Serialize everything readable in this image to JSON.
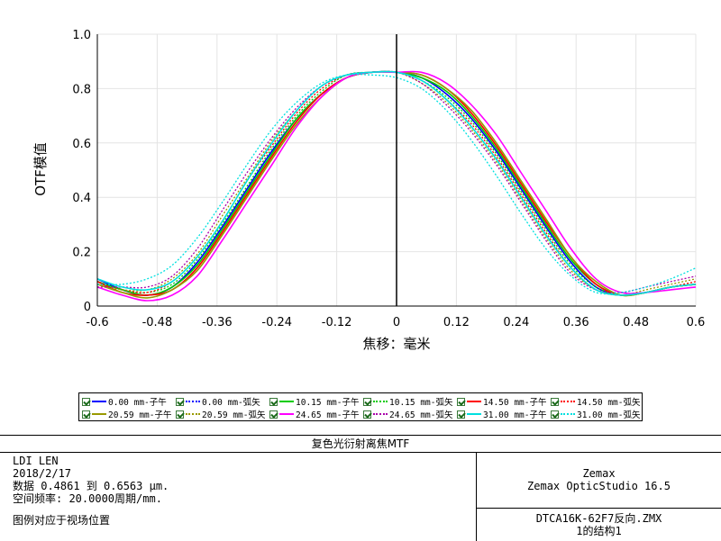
{
  "chart_data": {
    "type": "line",
    "title": "复色光衍射离焦MTF",
    "xlabel": "焦移：毫米",
    "ylabel": "OTF模值",
    "xlim": [
      -0.6,
      0.6
    ],
    "ylim": [
      0,
      1.0
    ],
    "x_ticks": [
      "-0.6",
      "-0.48",
      "-0.36",
      "-0.24",
      "-0.12",
      "0",
      "0.12",
      "0.24",
      "0.36",
      "0.48",
      "0.6"
    ],
    "y_ticks": [
      "0",
      "0.2",
      "0.4",
      "0.6",
      "0.8",
      "1.0"
    ],
    "grid": true,
    "x": [
      -0.6,
      -0.55,
      -0.5,
      -0.45,
      -0.4,
      -0.35,
      -0.3,
      -0.25,
      -0.2,
      -0.15,
      -0.1,
      -0.05,
      0,
      0.05,
      0.1,
      0.15,
      0.2,
      0.25,
      0.3,
      0.35,
      0.4,
      0.45,
      0.5,
      0.55,
      0.6
    ],
    "series": [
      {
        "name": "0.00 mm-子午",
        "color": "#0000ff",
        "dash": false,
        "values": [
          0.1,
          0.06,
          0.04,
          0.07,
          0.16,
          0.29,
          0.43,
          0.57,
          0.69,
          0.78,
          0.84,
          0.86,
          0.86,
          0.84,
          0.78,
          0.69,
          0.57,
          0.43,
          0.29,
          0.16,
          0.07,
          0.04,
          0.05,
          0.07,
          0.08
        ]
      },
      {
        "name": "0.00 mm-弧矢",
        "color": "#0000ff",
        "dash": true,
        "values": [
          0.1,
          0.06,
          0.04,
          0.07,
          0.16,
          0.29,
          0.43,
          0.57,
          0.69,
          0.78,
          0.84,
          0.86,
          0.86,
          0.84,
          0.78,
          0.69,
          0.57,
          0.43,
          0.29,
          0.16,
          0.07,
          0.04,
          0.05,
          0.07,
          0.08
        ]
      },
      {
        "name": "10.15 mm-子午",
        "color": "#00cc00",
        "dash": false,
        "values": [
          0.09,
          0.06,
          0.04,
          0.07,
          0.15,
          0.28,
          0.42,
          0.56,
          0.69,
          0.78,
          0.84,
          0.86,
          0.86,
          0.84,
          0.79,
          0.7,
          0.58,
          0.44,
          0.3,
          0.17,
          0.08,
          0.04,
          0.05,
          0.07,
          0.08
        ]
      },
      {
        "name": "10.15 mm-弧矢",
        "color": "#00cc00",
        "dash": true,
        "values": [
          0.09,
          0.06,
          0.05,
          0.08,
          0.17,
          0.3,
          0.44,
          0.58,
          0.7,
          0.79,
          0.85,
          0.86,
          0.86,
          0.83,
          0.77,
          0.68,
          0.56,
          0.42,
          0.28,
          0.15,
          0.07,
          0.04,
          0.05,
          0.07,
          0.08
        ]
      },
      {
        "name": "14.50 mm-子午",
        "color": "#ff0000",
        "dash": false,
        "values": [
          0.09,
          0.05,
          0.04,
          0.06,
          0.14,
          0.27,
          0.41,
          0.55,
          0.68,
          0.78,
          0.84,
          0.86,
          0.86,
          0.85,
          0.8,
          0.71,
          0.59,
          0.45,
          0.31,
          0.18,
          0.08,
          0.04,
          0.05,
          0.07,
          0.08
        ]
      },
      {
        "name": "14.50 mm-弧矢",
        "color": "#ff0000",
        "dash": true,
        "values": [
          0.08,
          0.06,
          0.05,
          0.09,
          0.18,
          0.31,
          0.46,
          0.59,
          0.71,
          0.8,
          0.85,
          0.86,
          0.86,
          0.83,
          0.76,
          0.67,
          0.55,
          0.41,
          0.27,
          0.14,
          0.06,
          0.04,
          0.05,
          0.07,
          0.09
        ]
      },
      {
        "name": "20.59 mm-子午",
        "color": "#999900",
        "dash": false,
        "values": [
          0.08,
          0.05,
          0.03,
          0.06,
          0.13,
          0.26,
          0.4,
          0.54,
          0.67,
          0.77,
          0.84,
          0.86,
          0.86,
          0.85,
          0.8,
          0.72,
          0.6,
          0.46,
          0.32,
          0.18,
          0.09,
          0.04,
          0.05,
          0.07,
          0.08
        ]
      },
      {
        "name": "20.59 mm-弧矢",
        "color": "#999900",
        "dash": true,
        "values": [
          0.08,
          0.06,
          0.06,
          0.1,
          0.19,
          0.33,
          0.47,
          0.61,
          0.72,
          0.81,
          0.85,
          0.86,
          0.86,
          0.82,
          0.75,
          0.65,
          0.53,
          0.39,
          0.25,
          0.13,
          0.06,
          0.04,
          0.06,
          0.08,
          0.1
        ]
      },
      {
        "name": "24.65 mm-子午",
        "color": "#ff00ff",
        "dash": false,
        "values": [
          0.07,
          0.04,
          0.02,
          0.04,
          0.11,
          0.24,
          0.38,
          0.52,
          0.66,
          0.77,
          0.84,
          0.86,
          0.86,
          0.86,
          0.82,
          0.74,
          0.63,
          0.49,
          0.35,
          0.21,
          0.1,
          0.05,
          0.05,
          0.06,
          0.07
        ]
      },
      {
        "name": "24.65 mm-弧矢",
        "color": "#aa00aa",
        "dash": true,
        "values": [
          0.07,
          0.07,
          0.07,
          0.11,
          0.21,
          0.35,
          0.49,
          0.62,
          0.73,
          0.81,
          0.85,
          0.86,
          0.86,
          0.82,
          0.74,
          0.64,
          0.52,
          0.38,
          0.24,
          0.12,
          0.06,
          0.05,
          0.07,
          0.09,
          0.11
        ]
      },
      {
        "name": "31.00 mm-子午",
        "color": "#00e0e0",
        "dash": false,
        "values": [
          0.1,
          0.07,
          0.06,
          0.09,
          0.18,
          0.31,
          0.46,
          0.6,
          0.72,
          0.81,
          0.85,
          0.86,
          0.86,
          0.83,
          0.76,
          0.66,
          0.54,
          0.4,
          0.26,
          0.14,
          0.06,
          0.04,
          0.05,
          0.07,
          0.08
        ]
      },
      {
        "name": "31.00 mm-弧矢",
        "color": "#00e0e0",
        "dash": true,
        "values": [
          0.08,
          0.08,
          0.1,
          0.15,
          0.25,
          0.38,
          0.52,
          0.65,
          0.75,
          0.82,
          0.85,
          0.85,
          0.84,
          0.8,
          0.72,
          0.61,
          0.48,
          0.34,
          0.21,
          0.11,
          0.05,
          0.05,
          0.07,
          0.1,
          0.14
        ]
      }
    ]
  },
  "legend": {
    "items": [
      "0.00 mm-子午",
      "0.00 mm-弧矢",
      "10.15 mm-子午",
      "10.15 mm-弧矢",
      "14.50 mm-子午",
      "14.50 mm-弧矢",
      "20.59 mm-子午",
      "20.59 mm-弧矢",
      "24.65 mm-子午",
      "24.65 mm-弧矢",
      "31.00 mm-子午",
      "31.00 mm-弧矢"
    ]
  },
  "info": {
    "title": "复色光衍射离焦MTF",
    "left_lines": [
      "LDI LEN",
      "2018/2/17",
      "数据 0.4861 到 0.6563 µm.",
      "空间频率: 20.0000周期/mm.",
      "图例对应于视场位置"
    ],
    "right_top_lines": [
      "Zemax",
      "Zemax OpticStudio 16.5"
    ],
    "right_bottom_lines": [
      "DTCA16K-62F7反向.ZMX",
      "1的结构1"
    ]
  }
}
